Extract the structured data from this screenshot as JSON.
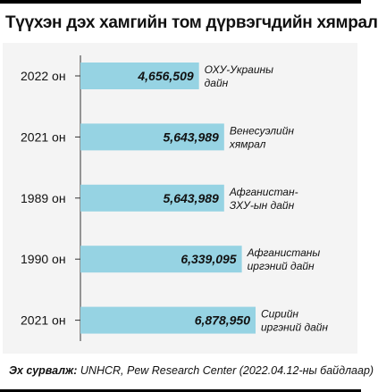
{
  "title": "Түүхэн дэх хамгийн том дүрвэгчдийн хямрал",
  "source_label": "Эх сурвалж:",
  "source_text": " UNHCR, Pew Research Center (2022.04.12-ны байдлаар)",
  "colors": {
    "bar": "#96d3e3",
    "axis": "#333333",
    "background": "#f4f4f4"
  },
  "chart_data": {
    "type": "bar",
    "orientation": "horizontal",
    "title": "Түүхэн дэх хамгийн том дүрвэгчдийн хямрал",
    "xlabel": "",
    "ylabel": "",
    "xlim": [
      0,
      6878950
    ],
    "grid": false,
    "categories": [
      "2022 он",
      "2021 он",
      "1989 он",
      "1990 он",
      "2021 он"
    ],
    "values": [
      4656509,
      5643989,
      5643989,
      6339095,
      6878950
    ],
    "value_labels": [
      "4,656,509",
      "5,643,989",
      "5,643,989",
      "6,339,095",
      "6,878,950"
    ],
    "annotations": [
      [
        "ОХУ-Украины",
        "дайн"
      ],
      [
        "Венесуэлийн",
        "хямрал"
      ],
      [
        "Афганистан-",
        "ЗХУ-ын дайн"
      ],
      [
        "Афганистаны",
        "иргэний дайн"
      ],
      [
        "Сирийн",
        "иргэний дайн"
      ]
    ]
  }
}
